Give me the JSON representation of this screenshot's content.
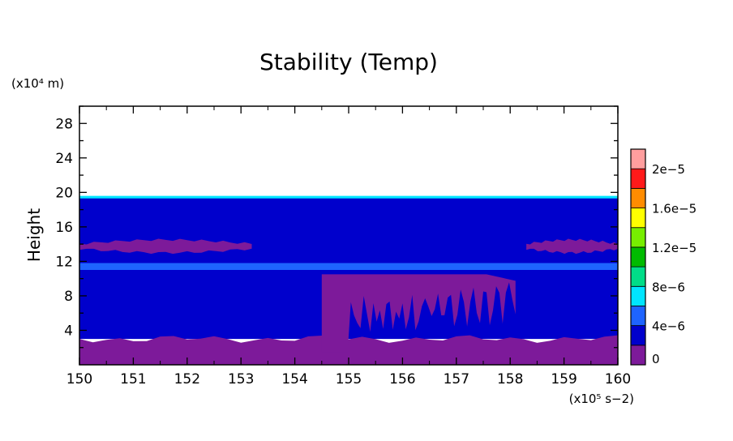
{
  "chart_data": {
    "type": "heatmap",
    "title": "Stability (Temp)",
    "ylabel": "Height",
    "yunit": "(x10⁴ m)",
    "xunit": "(x10⁵ s−2)",
    "xlim": [
      150,
      160
    ],
    "ylim": [
      0,
      30
    ],
    "xticks": [
      150,
      151,
      152,
      153,
      154,
      155,
      156,
      157,
      158,
      159,
      160
    ],
    "xtick_labels": [
      "150",
      "151",
      "152",
      "153",
      "154",
      "155",
      "156",
      "157",
      "158",
      "159",
      "160"
    ],
    "yticks": [
      4,
      8,
      12,
      16,
      20,
      24,
      28
    ],
    "ytick_labels": [
      "4",
      "8",
      "12",
      "16",
      "20",
      "24",
      "28"
    ],
    "colorbar": {
      "levels": [
        0,
        2e-06,
        4e-06,
        6e-06,
        8e-06,
        1e-05,
        1.2e-05,
        1.4e-05,
        1.6e-05,
        1.8e-05,
        2e-05
      ],
      "colors": [
        "#7d1a9a",
        "#0000cc",
        "#1e64ff",
        "#00e5ff",
        "#00dd88",
        "#00bb00",
        "#77ee00",
        "#ffff00",
        "#ff8c00",
        "#ff1a1a",
        "#ff9e9e"
      ],
      "labels": [
        {
          "text": "0",
          "level": 0
        },
        {
          "text": "4e−6",
          "level": 4e-06
        },
        {
          "text": "8e−6",
          "level": 8e-06
        },
        {
          "text": "1.2e−5",
          "level": 1.2e-05
        },
        {
          "text": "1.6e−5",
          "level": 1.6e-05
        },
        {
          "text": "2e−5",
          "level": 2e-05
        }
      ]
    },
    "regions": [
      {
        "name": "surface-layer",
        "level": 0,
        "x": [
          150,
          160
        ],
        "y": [
          0,
          3
        ]
      },
      {
        "name": "troposphere",
        "level": 2e-06,
        "x": [
          150,
          160
        ],
        "y": [
          3,
          19.5
        ]
      },
      {
        "name": "layer-14km",
        "level": 0,
        "x": [
          150,
          153.2
        ],
        "y": [
          13,
          14.5
        ]
      },
      {
        "name": "layer-14km-east",
        "level": 0,
        "x": [
          158.3,
          160
        ],
        "y": [
          13,
          14.5
        ]
      },
      {
        "name": "band-11km",
        "level": 4e-06,
        "x": [
          150,
          160
        ],
        "y": [
          11,
          11.8
        ]
      },
      {
        "name": "deep-convection",
        "level": 0,
        "x": [
          154.5,
          158.1
        ],
        "y": [
          1.5,
          10.5
        ]
      },
      {
        "name": "tropopause",
        "level": 6e-06,
        "x": [
          150,
          160
        ],
        "y": [
          19.3,
          19.6
        ]
      }
    ],
    "grid": false
  }
}
